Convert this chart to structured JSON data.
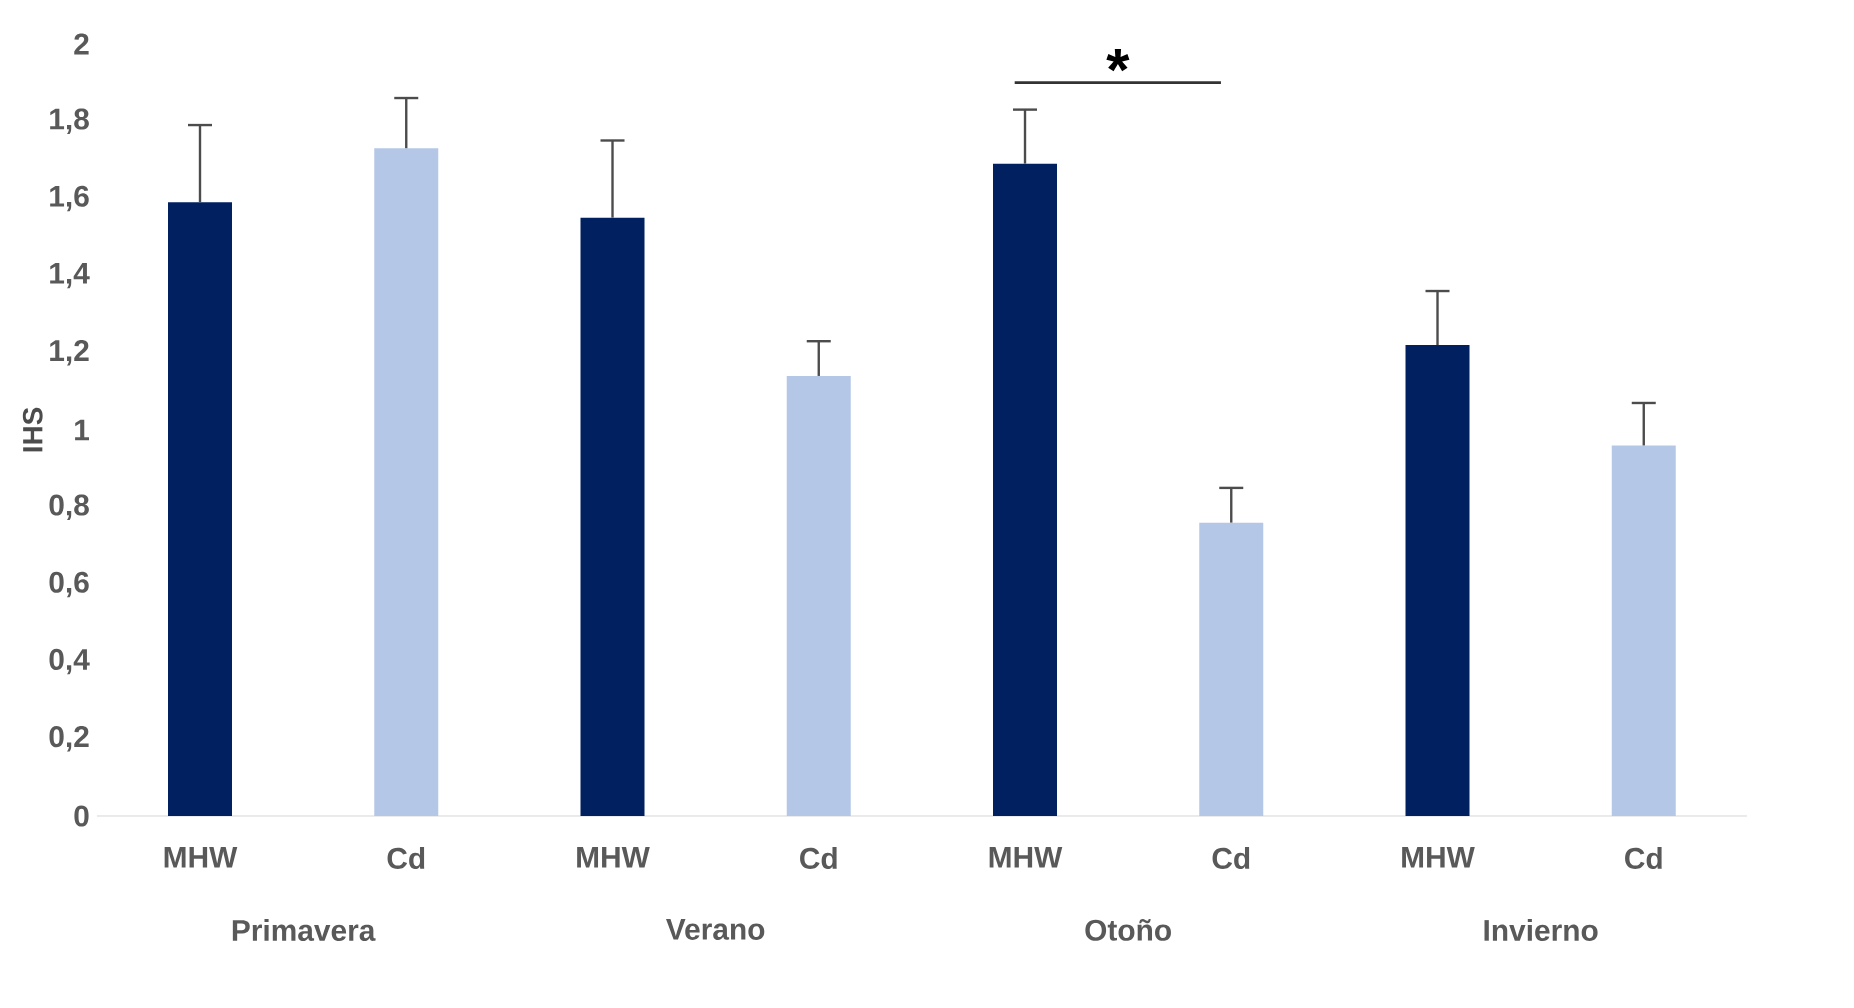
{
  "chart_data": {
    "type": "bar",
    "ylabel": "IHS",
    "categories": [
      "MHW",
      "Cd",
      "MHW",
      "Cd",
      "MHW",
      "Cd",
      "MHW",
      "Cd"
    ],
    "values": [
      1.59,
      1.73,
      1.55,
      1.14,
      1.69,
      0.76,
      1.22,
      0.96
    ],
    "colors": [
      "#002060",
      "#b4c7e7",
      "#002060",
      "#b4c7e7",
      "#002060",
      "#b4c7e7",
      "#002060",
      "#b4c7e7"
    ],
    "errors": [
      [
        1.59,
        1.79
      ],
      [
        1.73,
        1.86
      ],
      [
        1.55,
        1.75
      ],
      [
        1.14,
        1.23
      ],
      [
        1.69,
        1.83
      ],
      [
        0.76,
        0.85
      ],
      [
        1.22,
        1.36
      ],
      [
        0.96,
        1.07
      ]
    ],
    "ylim": [
      0,
      2
    ],
    "yticks": [
      0,
      {
        "value": 0.2,
        "label": "0,2"
      },
      {
        "value": 0.4,
        "label": "0,4"
      },
      {
        "value": 0.6,
        "label": "0,6"
      },
      {
        "value": 0.8,
        "label": "0,8"
      },
      1,
      {
        "value": 1.2,
        "label": "1,2"
      },
      {
        "value": 1.4,
        "label": "1,4"
      },
      {
        "value": 1.6,
        "label": "1,6"
      },
      {
        "value": 1.8,
        "label": "1,8"
      },
      2
    ],
    "annotations": [
      "Primavera",
      "Verano",
      "Otoño",
      "Invierno",
      "*"
    ],
    "grid": false
  }
}
